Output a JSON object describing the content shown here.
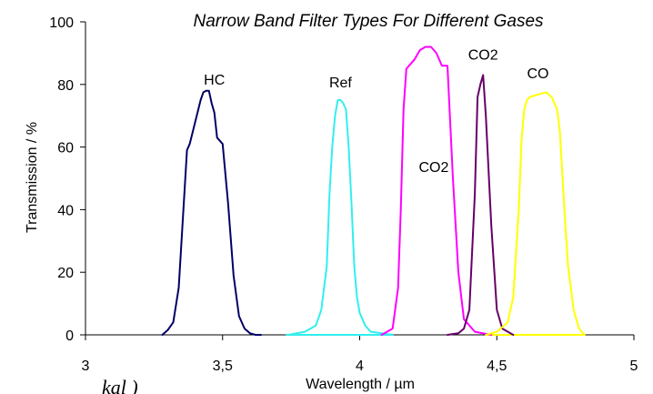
{
  "chart_data": {
    "type": "line",
    "title": "Narrow Band Filter Types For Different Gases",
    "xlabel": "Wavelength / µm",
    "ylabel": "Transmission / %",
    "xlim": [
      3,
      5
    ],
    "ylim": [
      0,
      100
    ],
    "x_ticks": [
      3,
      3.5,
      4,
      4.5,
      5
    ],
    "x_tick_labels": [
      "3",
      "3,5",
      "4",
      "4,5",
      "5"
    ],
    "y_ticks": [
      0,
      20,
      40,
      60,
      80,
      100
    ],
    "y_tick_labels": [
      "0",
      "20",
      "40",
      "60",
      "80",
      "100"
    ],
    "grid": false,
    "series": [
      {
        "name": "HC",
        "color": "#000066",
        "x": [
          3.28,
          3.3,
          3.32,
          3.34,
          3.36,
          3.37,
          3.38,
          3.4,
          3.42,
          3.43,
          3.44,
          3.45,
          3.46,
          3.47,
          3.48,
          3.5,
          3.52,
          3.54,
          3.56,
          3.58,
          3.6,
          3.62,
          3.64
        ],
        "y": [
          0,
          1.5,
          4,
          15,
          44,
          59,
          61,
          68,
          75,
          77.5,
          78,
          78,
          74,
          71,
          63,
          61,
          42,
          19,
          6,
          2,
          0.5,
          0,
          0
        ]
      },
      {
        "name": "Ref",
        "color": "#33eeee",
        "x": [
          3.74,
          3.8,
          3.84,
          3.86,
          3.88,
          3.89,
          3.9,
          3.91,
          3.92,
          3.93,
          3.94,
          3.95,
          3.96,
          3.97,
          3.98,
          3.99,
          4.0,
          4.02,
          4.04,
          4.08,
          4.12
        ],
        "y": [
          0,
          1,
          3,
          8,
          22,
          45,
          60,
          70,
          75,
          75,
          74,
          72,
          60,
          42,
          22,
          12,
          7,
          3,
          1,
          0.5,
          0
        ]
      },
      {
        "name": "CO2",
        "color": "#ff00ff",
        "x": [
          4.08,
          4.12,
          4.14,
          4.15,
          4.16,
          4.17,
          4.18,
          4.2,
          4.22,
          4.24,
          4.26,
          4.28,
          4.3,
          4.32,
          4.34,
          4.36,
          4.38,
          4.42,
          4.48
        ],
        "y": [
          0,
          2,
          15,
          40,
          72,
          85,
          86,
          88,
          91,
          92,
          92,
          90,
          86,
          86,
          50,
          20,
          5,
          1,
          0
        ]
      },
      {
        "name": "CO2",
        "color": "#660066",
        "x": [
          4.32,
          4.36,
          4.38,
          4.4,
          4.42,
          4.43,
          4.44,
          4.45,
          4.46,
          4.48,
          4.5,
          4.52,
          4.56
        ],
        "y": [
          0,
          0.5,
          2,
          8,
          45,
          76,
          80,
          83,
          70,
          35,
          8,
          2,
          0
        ]
      },
      {
        "name": "CO",
        "color": "#ffff00",
        "x": [
          4.46,
          4.5,
          4.54,
          4.56,
          4.58,
          4.59,
          4.6,
          4.61,
          4.62,
          4.64,
          4.66,
          4.68,
          4.7,
          4.72,
          4.73,
          4.74,
          4.75,
          4.76,
          4.78,
          4.8,
          4.82
        ],
        "y": [
          0,
          1,
          4,
          12,
          40,
          62,
          72,
          75,
          76,
          76.5,
          77,
          77.5,
          76,
          72,
          65,
          50,
          35,
          22,
          8,
          2,
          0
        ]
      }
    ],
    "annotations": [
      {
        "text": "HC",
        "x": 3.47,
        "y": 80
      },
      {
        "text": "Ref",
        "x": 3.93,
        "y": 79
      },
      {
        "text": "CO2",
        "x": 4.27,
        "y": 52
      },
      {
        "text": "CO2",
        "x": 4.45,
        "y": 88
      },
      {
        "text": "CO",
        "x": 4.65,
        "y": 82
      }
    ]
  },
  "fragment_text": "kal )"
}
